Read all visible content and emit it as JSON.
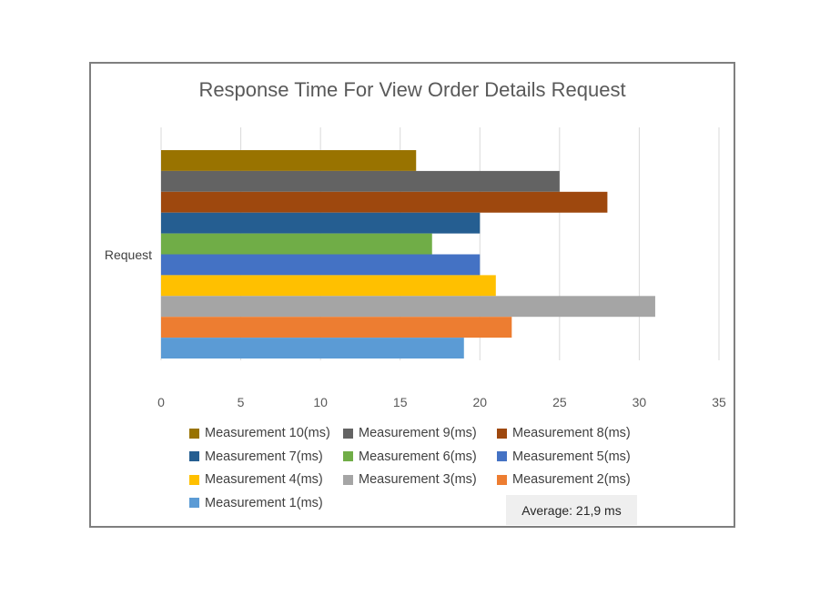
{
  "chart_data": {
    "type": "bar",
    "orientation": "horizontal",
    "title": "Response Time For View Order Details Request",
    "categories": [
      "Request"
    ],
    "xlim": [
      0,
      35
    ],
    "xticks": [
      "0",
      "5",
      "10",
      "15",
      "20",
      "25",
      "30",
      "35"
    ],
    "grid": true,
    "legend_position": "bottom",
    "series": [
      {
        "name": "Measurement 10(ms)",
        "values": [
          16
        ],
        "color": "#997300"
      },
      {
        "name": "Measurement 9(ms)",
        "values": [
          25
        ],
        "color": "#636363"
      },
      {
        "name": "Measurement 8(ms)",
        "values": [
          28
        ],
        "color": "#9e480e"
      },
      {
        "name": "Measurement 7(ms)",
        "values": [
          20
        ],
        "color": "#255e91"
      },
      {
        "name": "Measurement 6(ms)",
        "values": [
          17
        ],
        "color": "#70ad47"
      },
      {
        "name": "Measurement 5(ms)",
        "values": [
          20
        ],
        "color": "#4472c4"
      },
      {
        "name": "Measurement 4(ms)",
        "values": [
          21
        ],
        "color": "#ffc000"
      },
      {
        "name": "Measurement 3(ms)",
        "values": [
          31
        ],
        "color": "#a5a5a5"
      },
      {
        "name": "Measurement 2(ms)",
        "values": [
          22
        ],
        "color": "#ed7d31"
      },
      {
        "name": "Measurement 1(ms)",
        "values": [
          19
        ],
        "color": "#5b9bd5"
      }
    ],
    "annotation": "Average: 21,9 ms"
  }
}
